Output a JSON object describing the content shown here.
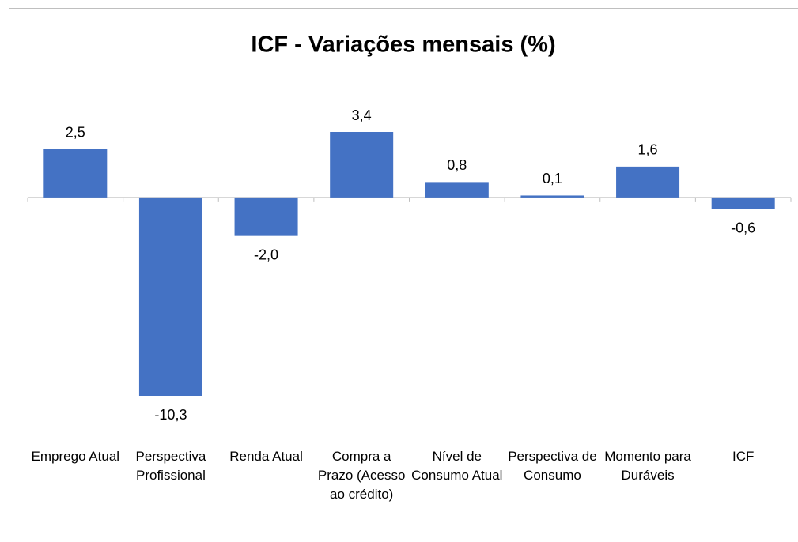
{
  "chart_data": {
    "type": "bar",
    "title": "ICF - Variações mensais (%)",
    "categories": [
      "Emprego Atual",
      "Perspectiva Profissional",
      "Renda Atual",
      "Compra a Prazo (Acesso ao crédito)",
      "Nível de Consumo Atual",
      "Perspectiva de Consumo",
      "Momento para Duráveis",
      "ICF"
    ],
    "values": [
      2.5,
      -10.3,
      -2.0,
      3.4,
      0.8,
      0.1,
      1.6,
      -0.6
    ],
    "value_labels": [
      "2,5",
      "-10,3",
      "-2,0",
      "3,4",
      "0,8",
      "0,1",
      "1,6",
      "-0,6"
    ],
    "color": "#4472c4"
  }
}
